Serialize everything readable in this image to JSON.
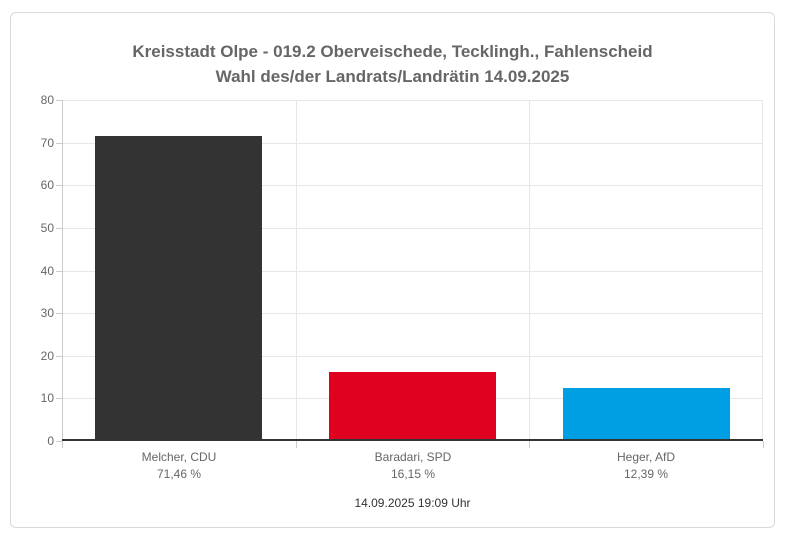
{
  "header": {
    "title_line1": "Kreisstadt Olpe - 019.2 Oberveischede, Tecklingh., Fahlenscheid",
    "title_line2": "Wahl des/der Landrats/Landrätin 14.09.2025"
  },
  "footer": {
    "timestamp": "14.09.2025 19:09 Uhr"
  },
  "chart_data": {
    "type": "bar",
    "title": "Kreisstadt Olpe - 019.2 Oberveischede, Tecklingh., Fahlenscheid Wahl des/der Landrats/Landrätin 14.09.2025",
    "categories": [
      "Melcher, CDU",
      "Baradari, SPD",
      "Heger, AfD"
    ],
    "category_sublabels": [
      "71,46 %",
      "16,15 %",
      "12,39 %"
    ],
    "values": [
      71.46,
      16.15,
      12.39
    ],
    "bar_colors": [
      "#333333",
      "#e00020",
      "#009ee2"
    ],
    "xlabel": "",
    "ylabel": "",
    "ylim": [
      0,
      80
    ],
    "yticks": [
      0,
      10,
      20,
      30,
      40,
      50,
      60,
      70,
      80
    ],
    "grid": true,
    "legend": "none"
  }
}
